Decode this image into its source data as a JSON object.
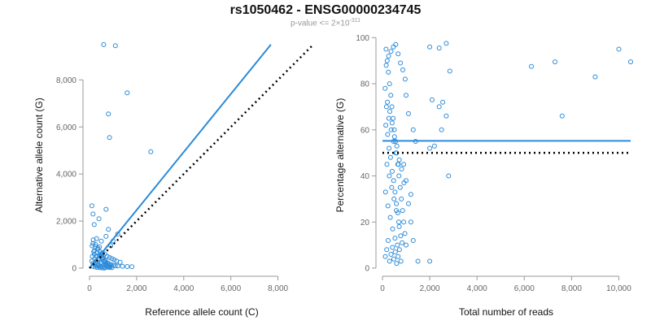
{
  "title": "rs1050462 - ENSG00000234745",
  "subtitle_prefix": "p-value <= 2×10",
  "subtitle_exponent": "-311",
  "colors": {
    "points": "#2b8ad8",
    "fit_line": "#2b8ad8",
    "reference_line": "#000000",
    "axis": "#999999"
  },
  "chart_data": [
    {
      "type": "scatter",
      "title": "",
      "xlabel": "Reference allele count (C)",
      "ylabel": "Alternative allele count (G)",
      "xlim": [
        0,
        9500
      ],
      "ylim": [
        0,
        9600
      ],
      "xticks": [
        0,
        2000,
        4000,
        6000,
        8000
      ],
      "xtick_labels": [
        "0",
        "2,000",
        "4,000",
        "6,000",
        "8,000"
      ],
      "yticks": [
        0,
        2000,
        4000,
        6000,
        8000
      ],
      "ytick_labels": [
        "0",
        "2,000",
        "4,000",
        "6,000",
        "8,000"
      ],
      "fit_line": [
        [
          0,
          0
        ],
        [
          7700,
          9500
        ]
      ],
      "reference_line": [
        [
          0,
          0
        ],
        [
          9500,
          9500
        ]
      ],
      "points": [
        [
          600,
          9500
        ],
        [
          1100,
          9450
        ],
        [
          1600,
          7450
        ],
        [
          800,
          6550
        ],
        [
          850,
          5550
        ],
        [
          2600,
          4950
        ],
        [
          100,
          2650
        ],
        [
          150,
          2300
        ],
        [
          700,
          2500
        ],
        [
          400,
          2100
        ],
        [
          200,
          1850
        ],
        [
          800,
          1650
        ],
        [
          700,
          1350
        ],
        [
          1200,
          1450
        ],
        [
          1000,
          1150
        ],
        [
          300,
          1250
        ],
        [
          500,
          1150
        ],
        [
          900,
          950
        ],
        [
          150,
          1050
        ],
        [
          250,
          900
        ],
        [
          350,
          800
        ],
        [
          450,
          700
        ],
        [
          550,
          650
        ],
        [
          650,
          600
        ],
        [
          750,
          500
        ],
        [
          850,
          450
        ],
        [
          950,
          400
        ],
        [
          1050,
          350
        ],
        [
          1150,
          300
        ],
        [
          1300,
          250
        ],
        [
          200,
          600
        ],
        [
          300,
          500
        ],
        [
          400,
          400
        ],
        [
          500,
          350
        ],
        [
          600,
          300
        ],
        [
          700,
          250
        ],
        [
          800,
          200
        ],
        [
          900,
          150
        ],
        [
          1000,
          120
        ],
        [
          1100,
          100
        ],
        [
          1200,
          90
        ],
        [
          1400,
          80
        ],
        [
          1600,
          70
        ],
        [
          1800,
          60
        ],
        [
          100,
          300
        ],
        [
          150,
          200
        ],
        [
          250,
          150
        ],
        [
          350,
          100
        ],
        [
          450,
          80
        ],
        [
          550,
          60
        ],
        [
          650,
          50
        ],
        [
          750,
          40
        ],
        [
          850,
          30
        ],
        [
          950,
          20
        ],
        [
          120,
          500
        ],
        [
          180,
          700
        ],
        [
          220,
          400
        ],
        [
          280,
          300
        ],
        [
          320,
          200
        ],
        [
          380,
          150
        ],
        [
          420,
          900
        ],
        [
          480,
          600
        ],
        [
          520,
          450
        ],
        [
          580,
          380
        ],
        [
          620,
          280
        ],
        [
          680,
          180
        ],
        [
          720,
          120
        ],
        [
          780,
          80
        ],
        [
          820,
          60
        ],
        [
          880,
          40
        ],
        [
          160,
          1200
        ],
        [
          260,
          1000
        ],
        [
          360,
          850
        ],
        [
          460,
          500
        ],
        [
          560,
          420
        ],
        [
          660,
          320
        ],
        [
          760,
          220
        ],
        [
          860,
          140
        ],
        [
          140,
          80
        ],
        [
          240,
          50
        ],
        [
          340,
          30
        ],
        [
          440,
          20
        ],
        [
          540,
          10
        ],
        [
          640,
          5
        ],
        [
          110,
          950
        ],
        [
          210,
          750
        ],
        [
          310,
          650
        ],
        [
          410,
          550
        ],
        [
          510,
          250
        ],
        [
          610,
          150
        ]
      ]
    },
    {
      "type": "scatter",
      "title": "",
      "xlabel": "Total number of reads",
      "ylabel": "Percentage alternative (G)",
      "xlim": [
        0,
        10500
      ],
      "ylim": [
        0,
        98
      ],
      "xticks": [
        0,
        2000,
        4000,
        6000,
        8000,
        10000
      ],
      "xtick_labels": [
        "0",
        "2,000",
        "4,000",
        "6,000",
        "8,000",
        "10,000"
      ],
      "yticks": [
        0,
        20,
        40,
        60,
        80,
        100
      ],
      "ytick_labels": [
        "0",
        "20",
        "40",
        "60",
        "80",
        "100"
      ],
      "fit_line": [
        [
          0,
          55.2
        ],
        [
          10500,
          55.2
        ]
      ],
      "reference_line": [
        [
          0,
          50
        ],
        [
          10500,
          50
        ]
      ],
      "points": [
        [
          6300,
          87.5
        ],
        [
          7300,
          89.5
        ],
        [
          7600,
          66
        ],
        [
          9000,
          83
        ],
        [
          10000,
          95
        ],
        [
          10500,
          89.5
        ],
        [
          2000,
          96
        ],
        [
          2400,
          95.5
        ],
        [
          2700,
          97.5
        ],
        [
          2850,
          85.5
        ],
        [
          2550,
          72
        ],
        [
          2400,
          70
        ],
        [
          2100,
          73
        ],
        [
          2700,
          66
        ],
        [
          2500,
          60
        ],
        [
          2200,
          53
        ],
        [
          2000,
          52
        ],
        [
          2800,
          40
        ],
        [
          1200,
          32
        ],
        [
          1500,
          3
        ],
        [
          2000,
          3
        ],
        [
          1000,
          75
        ],
        [
          1100,
          67
        ],
        [
          1300,
          60
        ],
        [
          1400,
          55
        ],
        [
          900,
          45
        ],
        [
          1000,
          38
        ],
        [
          1100,
          28
        ],
        [
          1200,
          20
        ],
        [
          1300,
          12
        ],
        [
          150,
          95
        ],
        [
          200,
          90
        ],
        [
          250,
          85
        ],
        [
          300,
          80
        ],
        [
          350,
          75
        ],
        [
          400,
          70
        ],
        [
          450,
          65
        ],
        [
          500,
          60
        ],
        [
          550,
          55
        ],
        [
          600,
          50
        ],
        [
          650,
          45
        ],
        [
          700,
          40
        ],
        [
          750,
          35
        ],
        [
          800,
          30
        ],
        [
          850,
          25
        ],
        [
          900,
          20
        ],
        [
          950,
          15
        ],
        [
          1000,
          10
        ],
        [
          120,
          5
        ],
        [
          180,
          8
        ],
        [
          240,
          12
        ],
        [
          300,
          3
        ],
        [
          360,
          6
        ],
        [
          420,
          9
        ],
        [
          480,
          4
        ],
        [
          540,
          7
        ],
        [
          600,
          2
        ],
        [
          660,
          5
        ],
        [
          720,
          8
        ],
        [
          780,
          3
        ],
        [
          140,
          62
        ],
        [
          220,
          58
        ],
        [
          280,
          52
        ],
        [
          340,
          48
        ],
        [
          410,
          42
        ],
        [
          470,
          38
        ],
        [
          530,
          33
        ],
        [
          590,
          28
        ],
        [
          650,
          24
        ],
        [
          710,
          18
        ],
        [
          770,
          14
        ],
        [
          830,
          11
        ],
        [
          160,
          88
        ],
        [
          260,
          92
        ],
        [
          360,
          94
        ],
        [
          460,
          96
        ],
        [
          560,
          97
        ],
        [
          660,
          93
        ],
        [
          760,
          89
        ],
        [
          860,
          86
        ],
        [
          960,
          82
        ],
        [
          110,
          78
        ],
        [
          210,
          72
        ],
        [
          310,
          68
        ],
        [
          410,
          63
        ],
        [
          510,
          57
        ],
        [
          610,
          53
        ],
        [
          710,
          47
        ],
        [
          810,
          43
        ],
        [
          910,
          37
        ],
        [
          130,
          33
        ],
        [
          230,
          27
        ],
        [
          330,
          22
        ],
        [
          430,
          17
        ],
        [
          530,
          13
        ],
        [
          630,
          10
        ],
        [
          190,
          45
        ],
        [
          290,
          40
        ],
        [
          390,
          35
        ],
        [
          490,
          30
        ],
        [
          590,
          25
        ],
        [
          690,
          20
        ],
        [
          170,
          70
        ],
        [
          270,
          65
        ],
        [
          370,
          60
        ],
        [
          470,
          55
        ],
        [
          570,
          50
        ],
        [
          670,
          45
        ]
      ]
    }
  ]
}
